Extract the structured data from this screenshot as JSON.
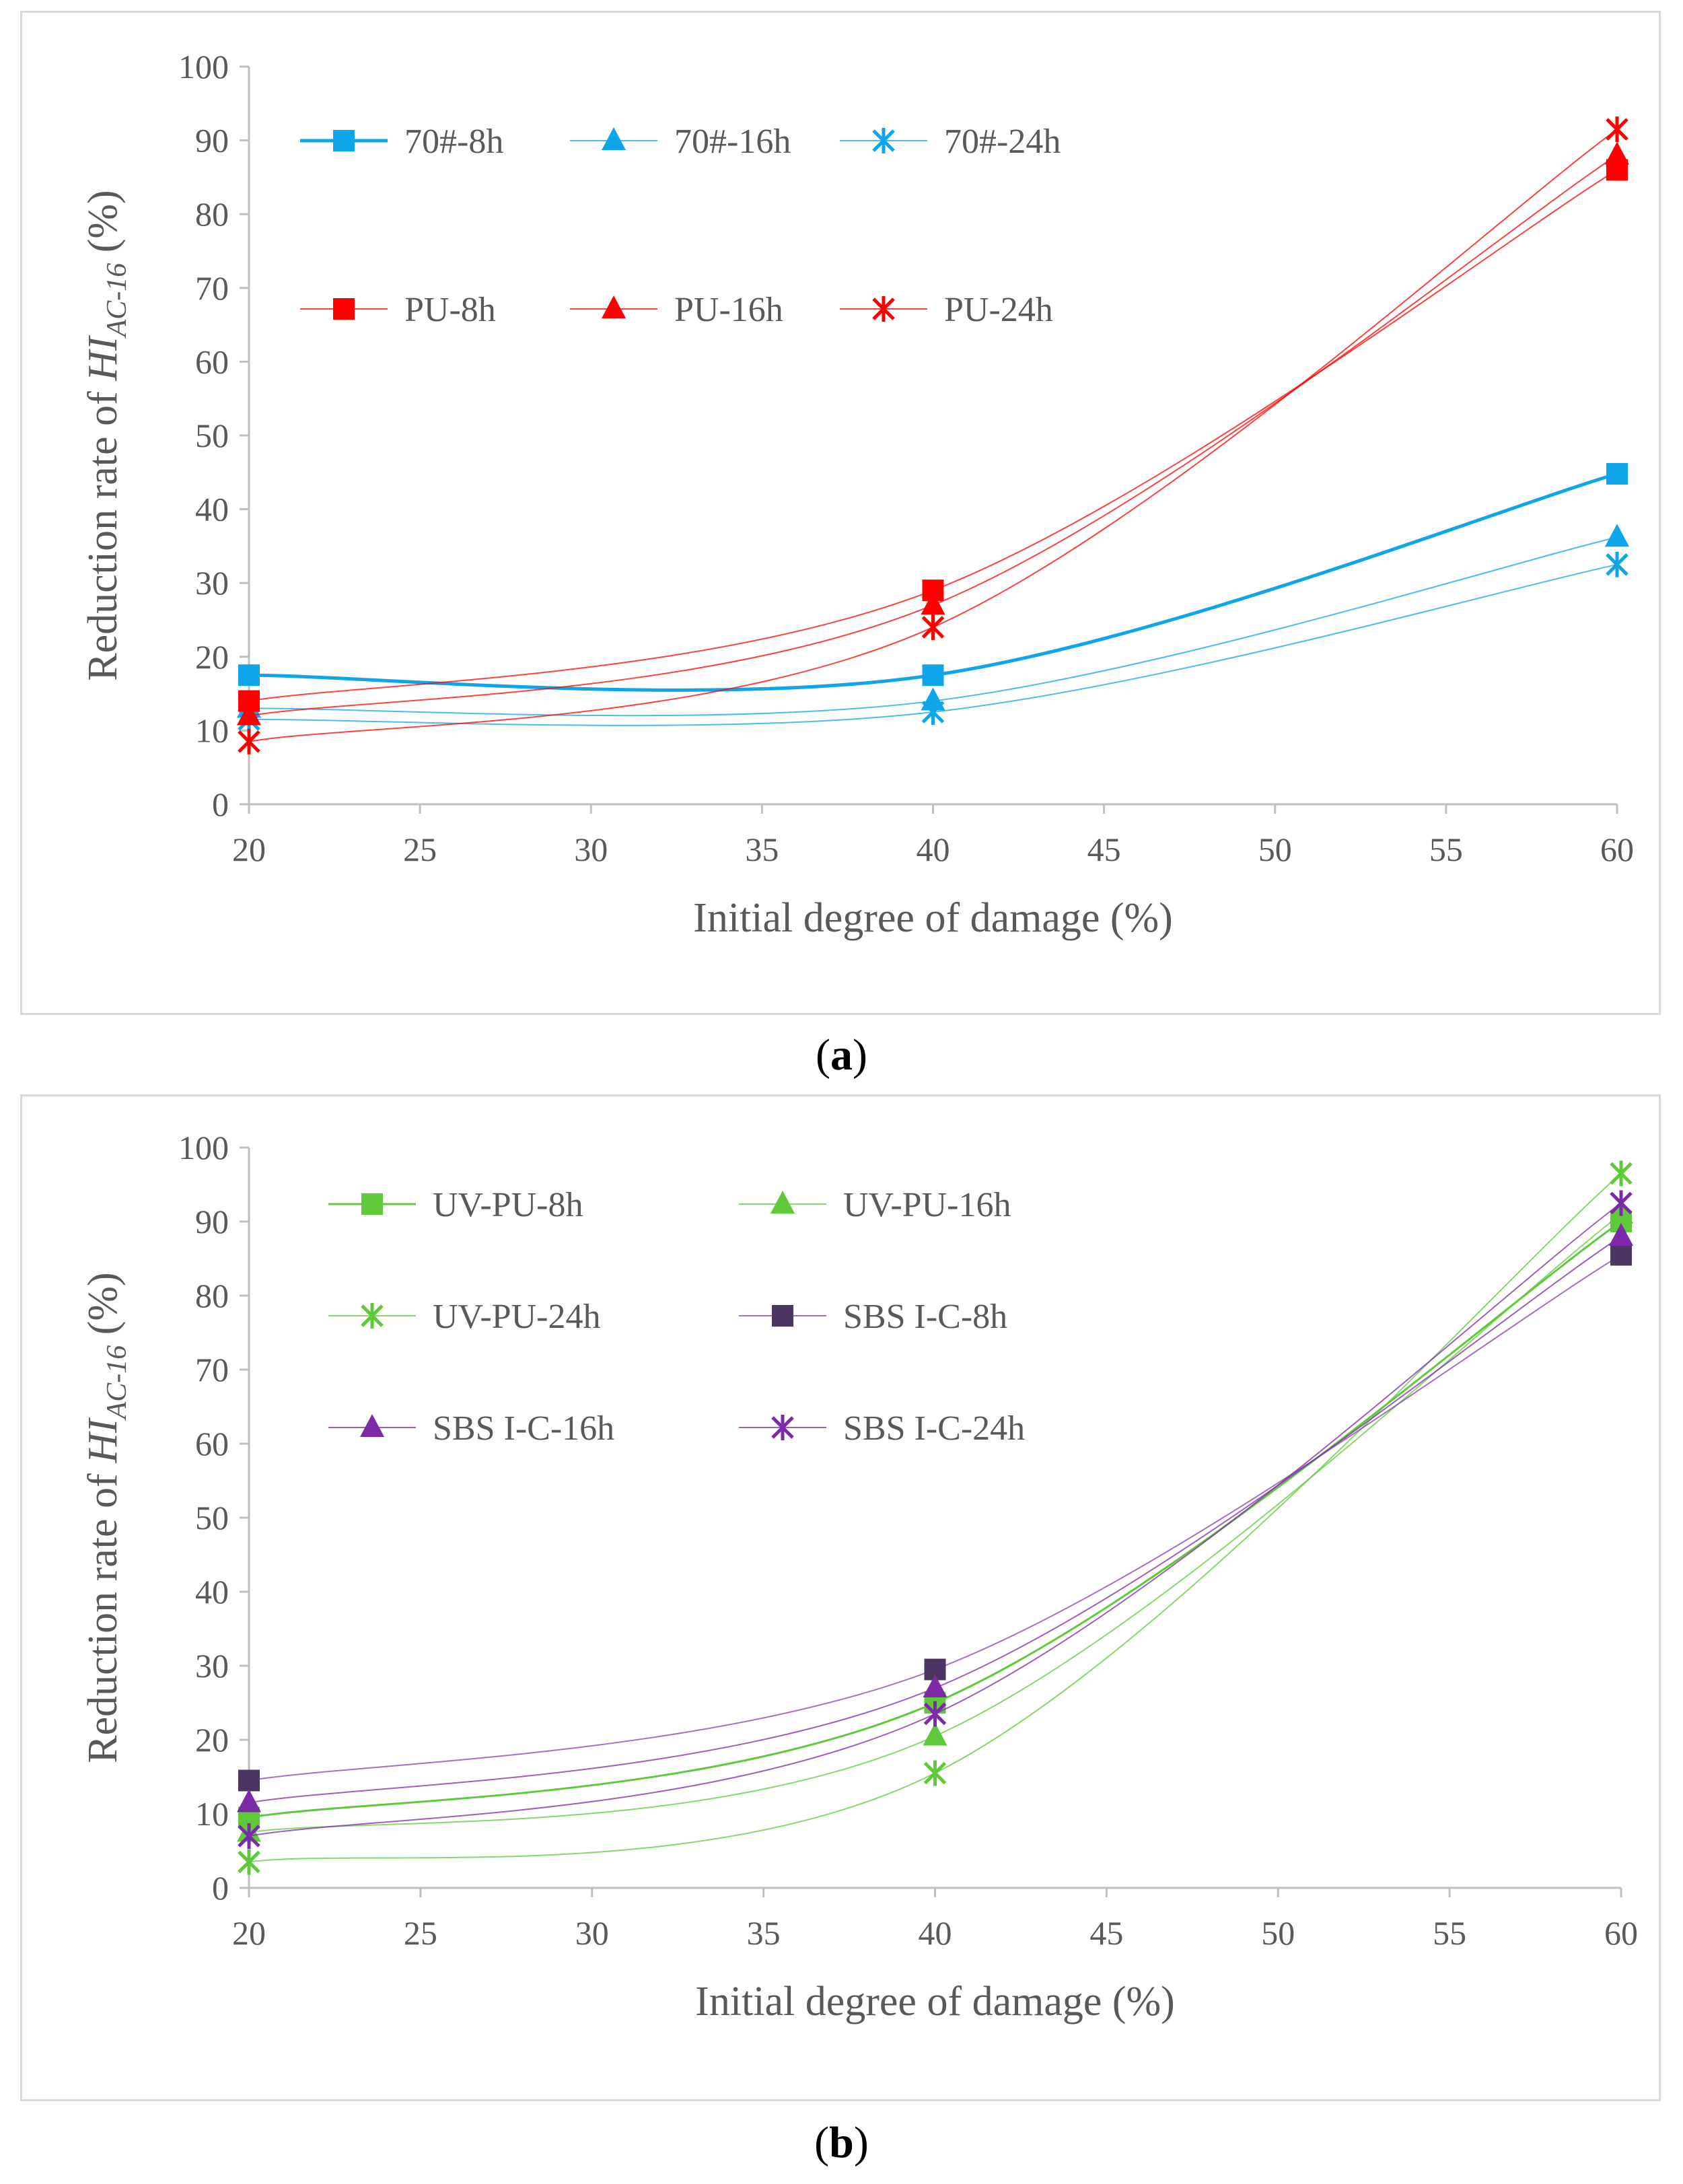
{
  "chart_data": [
    {
      "type": "line",
      "panel": "a",
      "caption_letter": "a",
      "caption_open": "(",
      "caption_close": ")",
      "xlabel": "Initial degree of damage (%)",
      "ylabel_prefix": "Reduction rate of ",
      "ylabel_main": "HI",
      "ylabel_sub": "AC-16",
      "ylabel_suffix": " (%)",
      "xlim": [
        20,
        60
      ],
      "ylim": [
        0,
        100
      ],
      "xticks": [
        20,
        25,
        30,
        35,
        40,
        45,
        50,
        55,
        60
      ],
      "yticks": [
        0,
        10,
        20,
        30,
        40,
        50,
        60,
        70,
        80,
        90,
        100
      ],
      "grid": false,
      "legend_location": "top-left, inside plot",
      "x": [
        20,
        40,
        60
      ],
      "series": [
        {
          "name": "70#-8h",
          "values": [
            17.5,
            17.5,
            44.8
          ],
          "color": "#0ea5e9",
          "marker": "square",
          "width": 5
        },
        {
          "name": "70#-16h",
          "values": [
            13.0,
            14.0,
            36.2
          ],
          "color": "#0ea5e9",
          "marker": "triangle",
          "width": 2
        },
        {
          "name": "70#-24h",
          "values": [
            11.5,
            12.5,
            32.5
          ],
          "color": "#0ea5e9",
          "marker": "star",
          "width": 2
        },
        {
          "name": "PU-8h",
          "values": [
            14.0,
            29.0,
            86.0
          ],
          "color": "#ff0000",
          "marker": "square",
          "width": 2
        },
        {
          "name": "PU-16h",
          "values": [
            12.0,
            27.0,
            88.0
          ],
          "color": "#ff0000",
          "marker": "triangle",
          "width": 2
        },
        {
          "name": "PU-24h",
          "values": [
            8.5,
            24.0,
            91.5
          ],
          "color": "#ff0000",
          "marker": "star",
          "width": 2
        }
      ]
    },
    {
      "type": "line",
      "panel": "b",
      "caption_letter": "b",
      "caption_open": "(",
      "caption_close": ")",
      "xlabel": "Initial degree of damage (%)",
      "ylabel_prefix": "Reduction rate of ",
      "ylabel_main": "HI",
      "ylabel_sub": "AC-16",
      "ylabel_suffix": " (%)",
      "xlim": [
        20,
        60
      ],
      "ylim": [
        0,
        100
      ],
      "xticks": [
        20,
        25,
        30,
        35,
        40,
        45,
        50,
        55,
        60
      ],
      "yticks": [
        0,
        10,
        20,
        30,
        40,
        50,
        60,
        70,
        80,
        90,
        100
      ],
      "grid": false,
      "legend_location": "top-left, inside plot",
      "x": [
        20,
        40,
        60
      ],
      "series": [
        {
          "name": "UV-PU-8h",
          "values": [
            9.5,
            25.0,
            90.0
          ],
          "color": "#5fc93b",
          "marker": "square",
          "width": 3
        },
        {
          "name": "UV-PU-16h",
          "values": [
            7.5,
            20.5,
            91.0
          ],
          "color": "#5fc93b",
          "marker": "triangle",
          "width": 2
        },
        {
          "name": "UV-PU-24h",
          "values": [
            3.5,
            15.5,
            96.5
          ],
          "color": "#5fc93b",
          "marker": "star",
          "width": 2
        },
        {
          "name": "SBS I-C-8h",
          "values": [
            14.5,
            29.5,
            85.5
          ],
          "color": "#4b3663",
          "marker": "square",
          "width": 2,
          "line_color": "#8a3fb0"
        },
        {
          "name": "SBS I-C-16h",
          "values": [
            11.5,
            27.0,
            88.0
          ],
          "color": "#7d2aa8",
          "marker": "triangle",
          "width": 2
        },
        {
          "name": "SBS I-C-24h",
          "values": [
            7.0,
            23.5,
            92.5
          ],
          "color": "#7d2aa8",
          "marker": "star",
          "width": 2
        }
      ]
    }
  ]
}
